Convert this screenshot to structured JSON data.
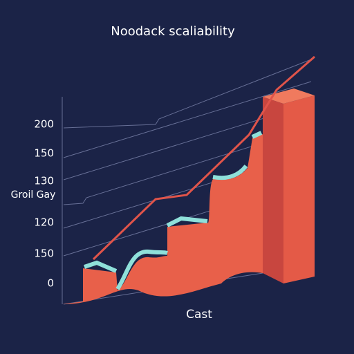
{
  "title": "Noodack scaliability",
  "axis_labels": {
    "y": "Groil Gay",
    "x": "Cast"
  },
  "scale_labels": [
    "200",
    "150",
    "130",
    "120",
    "150",
    "0"
  ]
}
